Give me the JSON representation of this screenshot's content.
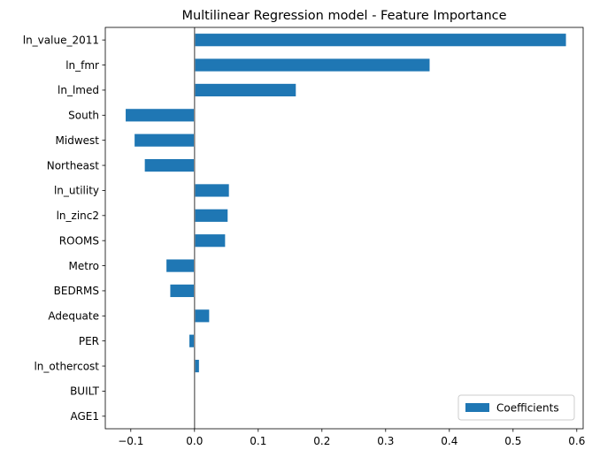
{
  "chart_data": {
    "type": "bar",
    "orientation": "horizontal",
    "title": "Multilinear Regression model - Feature Importance",
    "xlabel": "",
    "ylabel": "",
    "categories": [
      "ln_value_2011",
      "ln_fmr",
      "ln_lmed",
      "South",
      "Midwest",
      "Northeast",
      "ln_utility",
      "ln_zinc2",
      "ROOMS",
      "Metro",
      "BEDRMS",
      "Adequate",
      "PER",
      "ln_othercost",
      "BUILT",
      "AGE1"
    ],
    "series": [
      {
        "name": "Coefficients",
        "color": "#1f77b4",
        "values": [
          0.583,
          0.369,
          0.159,
          -0.108,
          -0.094,
          -0.078,
          0.054,
          0.052,
          0.048,
          -0.044,
          -0.038,
          0.023,
          -0.008,
          0.007,
          0.0,
          0.0
        ]
      }
    ],
    "xlim": [
      -0.14,
      0.61
    ],
    "xticks": [
      -0.1,
      0.0,
      0.1,
      0.2,
      0.3,
      0.4,
      0.5,
      0.6
    ],
    "xtick_labels": [
      "−0.1",
      "0.0",
      "0.1",
      "0.2",
      "0.3",
      "0.4",
      "0.5",
      "0.6"
    ],
    "zero_line": true,
    "zero_line_color": "#808080",
    "grid": false,
    "legend": {
      "position": "lower-right",
      "entries": [
        "Coefficients"
      ]
    }
  }
}
